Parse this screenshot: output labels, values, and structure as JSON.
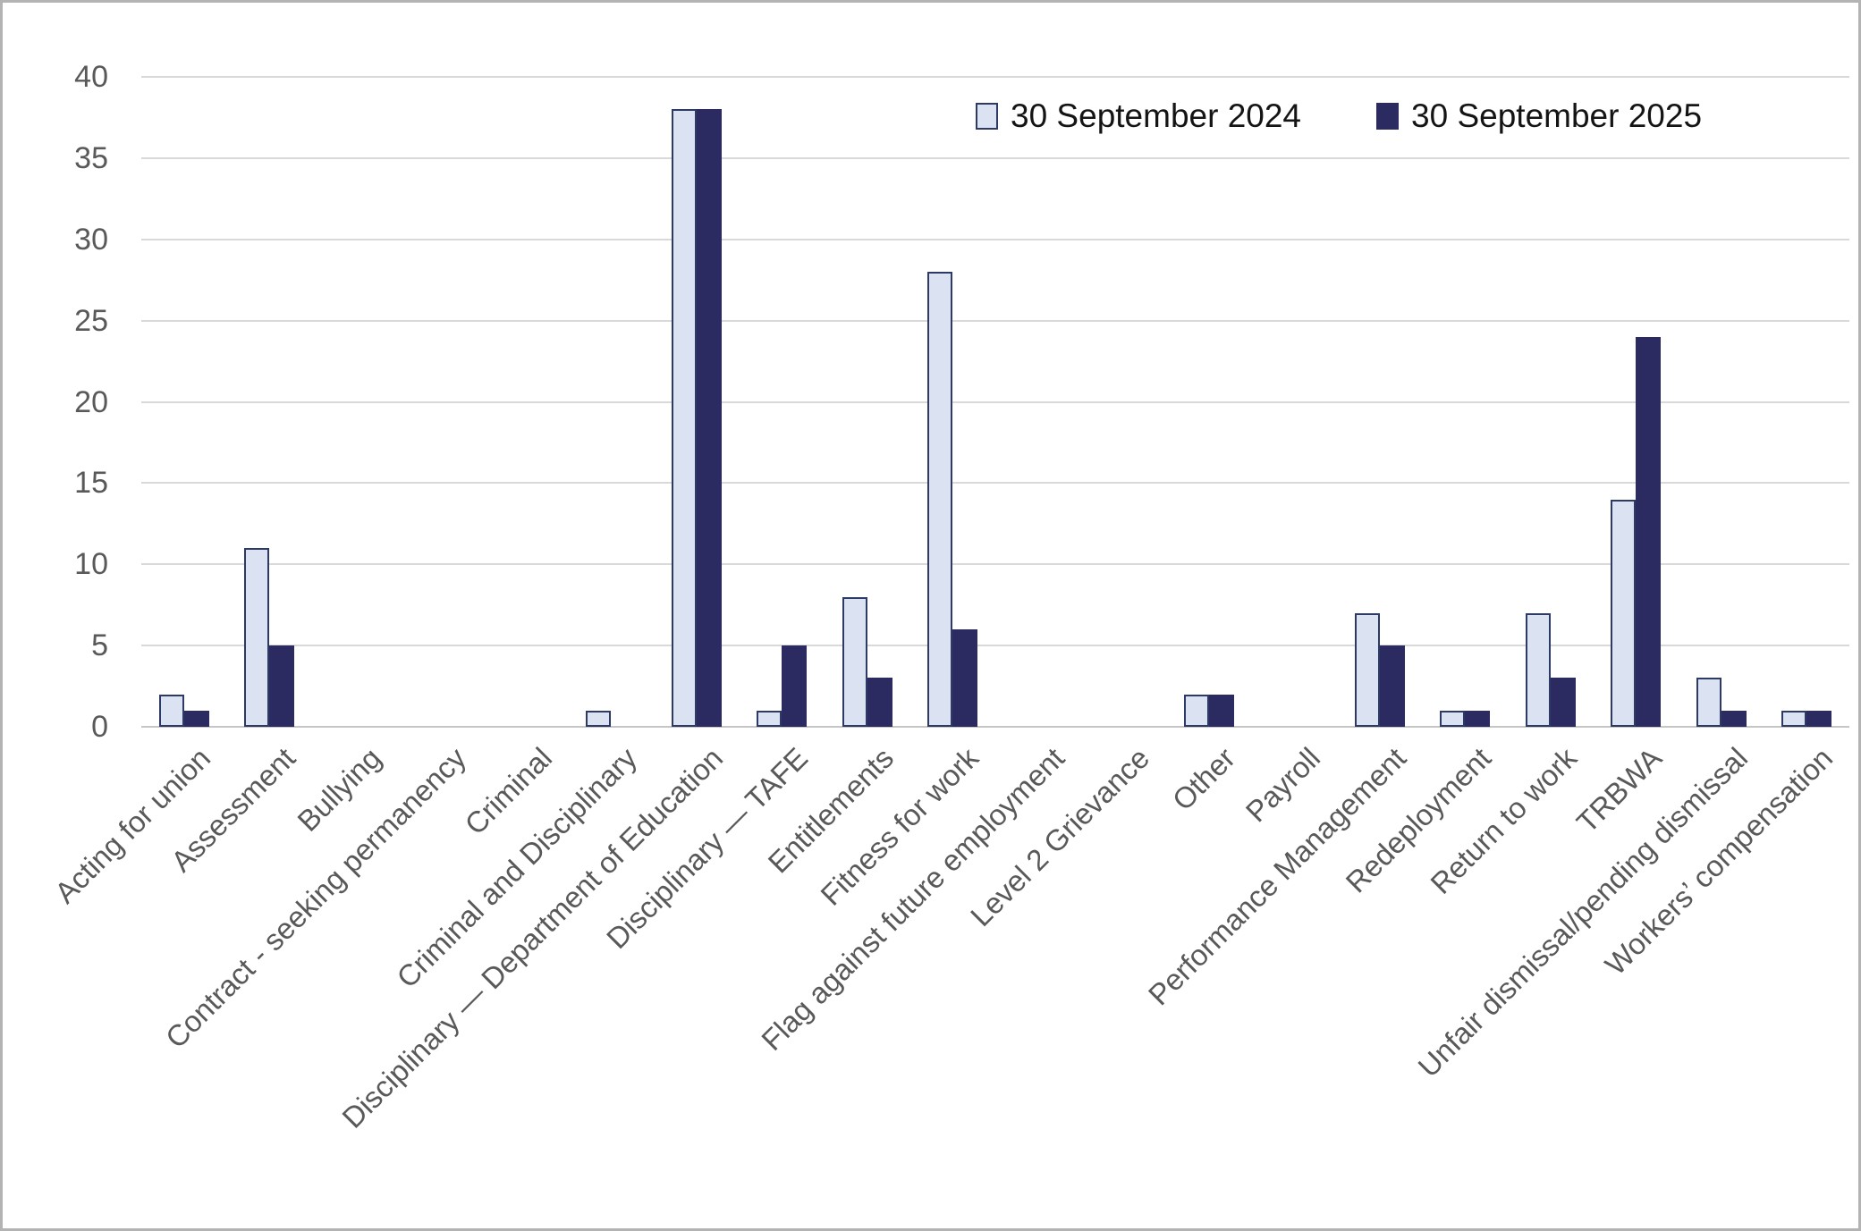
{
  "chart_data": {
    "type": "bar",
    "title": "",
    "xlabel": "",
    "ylabel": "",
    "ylim": [
      0,
      40
    ],
    "yticks": [
      0,
      5,
      10,
      15,
      20,
      25,
      30,
      35,
      40
    ],
    "grid": true,
    "legend_position": "top-right-inside",
    "categories": [
      "Acting for union",
      "Assessment",
      "Bullying",
      "Contract - seeking permanency",
      "Criminal",
      "Criminal and Disciplinary",
      "Disciplinary — Department of Education",
      "Disciplinary — TAFE",
      "Entitlements",
      "Fitness for work",
      "Flag against future employment",
      "Level 2 Grievance",
      "Other",
      "Payroll",
      "Performance Management",
      "Redeployment",
      "Return to work",
      "TRBWA",
      "Unfair dismissal/pending dismissal",
      "Workers’ compensation"
    ],
    "series": [
      {
        "name": "30 September 2024",
        "fill": "#dbe3f2",
        "border": "#2e3a66",
        "values": [
          2,
          11,
          0,
          0,
          0,
          1,
          38,
          1,
          8,
          28,
          0,
          0,
          2,
          0,
          7,
          1,
          7,
          14,
          3,
          1
        ]
      },
      {
        "name": "30 September 2025",
        "fill": "#2b2b62",
        "border": "#2b2b62",
        "values": [
          1,
          5,
          0,
          0,
          0,
          0,
          38,
          5,
          3,
          6,
          0,
          0,
          2,
          0,
          5,
          1,
          3,
          24,
          1,
          1
        ]
      }
    ],
    "colors": {
      "gridline": "#d9d9d9",
      "axis_line": "#c6c6c6",
      "tick_text": "#595959",
      "legend_text": "#141414"
    }
  }
}
